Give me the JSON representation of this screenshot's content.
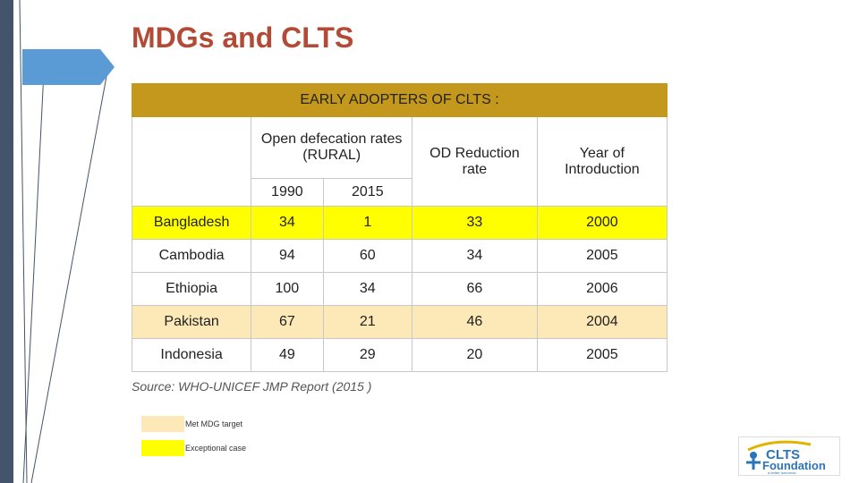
{
  "title": "MDGs and CLTS",
  "table": {
    "title": "EARLY ADOPTERS OF CLTS :",
    "header": {
      "od_rates": "Open defecation rates (RURAL)",
      "years": [
        "1990",
        "2015"
      ],
      "reduction": "OD Reduction rate",
      "year_intro": "Year of Introduction"
    },
    "rows": [
      {
        "cells": [
          "Bangladesh",
          34,
          1,
          33,
          2000
        ],
        "fill": "#ffff00"
      },
      {
        "cells": [
          "Cambodia",
          94,
          60,
          34,
          2005
        ],
        "fill": "#ffffff"
      },
      {
        "cells": [
          "Ethiopia",
          100,
          34,
          66,
          2006
        ],
        "fill": "#ffffff"
      },
      {
        "cells": [
          "Pakistan",
          67,
          21,
          46,
          2004
        ],
        "fill": "#fde9b8"
      },
      {
        "cells": [
          "Indonesia",
          49,
          29,
          20,
          2005
        ],
        "fill": "#ffffff"
      }
    ]
  },
  "source": "Source: WHO-UNICEF JMP Report (2015 )",
  "legend": [
    {
      "label": "Met MDG target",
      "color": "#fde9b8"
    },
    {
      "label": "Exceptional case",
      "color": "#ffff00"
    }
  ],
  "logo": {
    "name": "CLTS",
    "subname": "Foundation",
    "tagline": "a better tomorrow"
  }
}
